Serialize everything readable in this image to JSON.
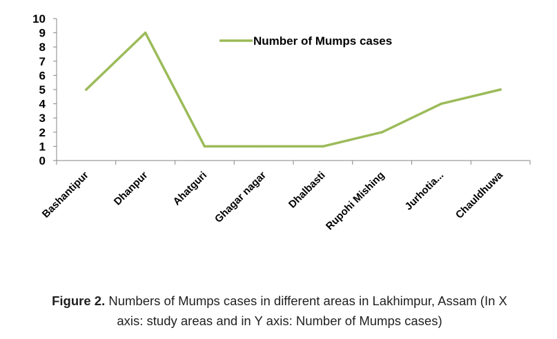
{
  "chart_data": {
    "type": "line",
    "categories": [
      "Bashantipur",
      "Dhanpur",
      "Ahatguri",
      "Ghagar nagar",
      "Dhalbasti",
      "Rupohi Mishing",
      "Jurhotia...",
      "Chauldhuwa"
    ],
    "series": [
      {
        "name": "Number of Mumps cases",
        "values": [
          5,
          9,
          1,
          1,
          1,
          2,
          4,
          5
        ],
        "color": "#9bbb59"
      }
    ],
    "yticks": [
      0,
      1,
      2,
      3,
      4,
      5,
      6,
      7,
      8,
      9,
      10
    ],
    "ylim": [
      0,
      10
    ],
    "legend": "top-right",
    "grid": false
  },
  "caption": {
    "label": "Figure 2.",
    "text_line1": " Numbers of Mumps cases in different areas in Lakhimpur, Assam (In X",
    "text_line2": "axis: study areas and in Y axis: Number of Mumps cases)"
  }
}
